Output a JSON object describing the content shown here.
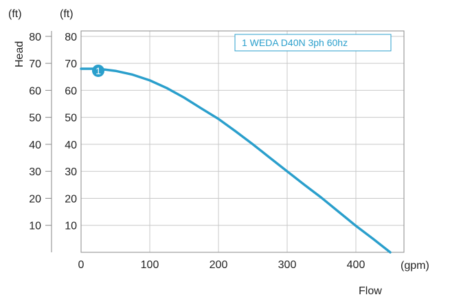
{
  "chart_data": {
    "type": "line",
    "title": "",
    "xlabel": "Flow",
    "ylabel": "Head",
    "x_unit": "(gpm)",
    "y_unit_left": "(ft)",
    "y_unit_right": "(ft)",
    "xlim": [
      0,
      470
    ],
    "ylim": [
      0,
      82
    ],
    "x_ticks": [
      0,
      100,
      200,
      300,
      400
    ],
    "y_ticks": [
      10,
      20,
      30,
      40,
      50,
      60,
      70,
      80
    ],
    "grid": true,
    "legend_position": "top-right",
    "series": [
      {
        "name": "1 WEDA D40N 3ph 60hz",
        "color": "#2a9fcc",
        "marker_label": "1",
        "x": [
          0,
          25,
          50,
          75,
          100,
          125,
          150,
          175,
          200,
          225,
          250,
          275,
          300,
          325,
          350,
          375,
          400,
          425,
          450
        ],
        "y": [
          68,
          68,
          67.2,
          65.8,
          63.7,
          60.8,
          57.3,
          53.3,
          49.4,
          44.8,
          40,
          35,
          30,
          25,
          20.2,
          15,
          9.8,
          5,
          0
        ]
      }
    ]
  }
}
